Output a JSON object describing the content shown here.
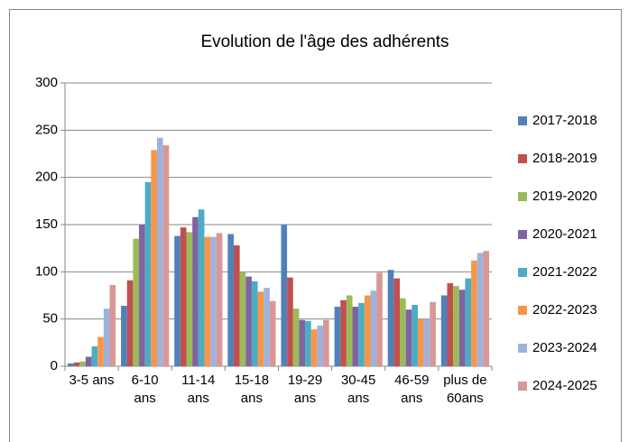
{
  "chart_data": {
    "type": "bar",
    "title": "Evolution de l'âge des adhérents",
    "categories": [
      "3-5 ans",
      "6-10\nans",
      "11-14\nans",
      "15-18\nans",
      "19-29\nans",
      "30-45\nans",
      "46-59\nans",
      "plus de\n60ans"
    ],
    "series": [
      {
        "name": "2017-2018",
        "color": "#4f81bd",
        "values": [
          3,
          64,
          138,
          140,
          150,
          63,
          102,
          75
        ]
      },
      {
        "name": "2018-2019",
        "color": "#c0504d",
        "values": [
          4,
          91,
          147,
          128,
          94,
          70,
          93,
          88
        ]
      },
      {
        "name": "2019-2020",
        "color": "#9bbb59",
        "values": [
          5,
          135,
          142,
          100,
          61,
          75,
          72,
          85
        ]
      },
      {
        "name": "2020-2021",
        "color": "#8064a2",
        "values": [
          10,
          150,
          158,
          95,
          49,
          63,
          60,
          81
        ]
      },
      {
        "name": "2021-2022",
        "color": "#4bacc6",
        "values": [
          21,
          195,
          166,
          90,
          48,
          67,
          65,
          93
        ]
      },
      {
        "name": "2022-2023",
        "color": "#f79646",
        "values": [
          31,
          229,
          137,
          79,
          39,
          75,
          50,
          112
        ]
      },
      {
        "name": "2023-2024",
        "color": "#9db3de",
        "values": [
          61,
          242,
          137,
          83,
          43,
          80,
          50,
          120
        ]
      },
      {
        "name": "2024-2025",
        "color": "#d99795",
        "values": [
          86,
          234,
          141,
          69,
          49,
          99,
          68,
          122
        ]
      }
    ],
    "ylim": [
      0,
      300
    ],
    "yticks": [
      0,
      50,
      100,
      150,
      200,
      250,
      300
    ],
    "grid": true,
    "legend": "right"
  }
}
